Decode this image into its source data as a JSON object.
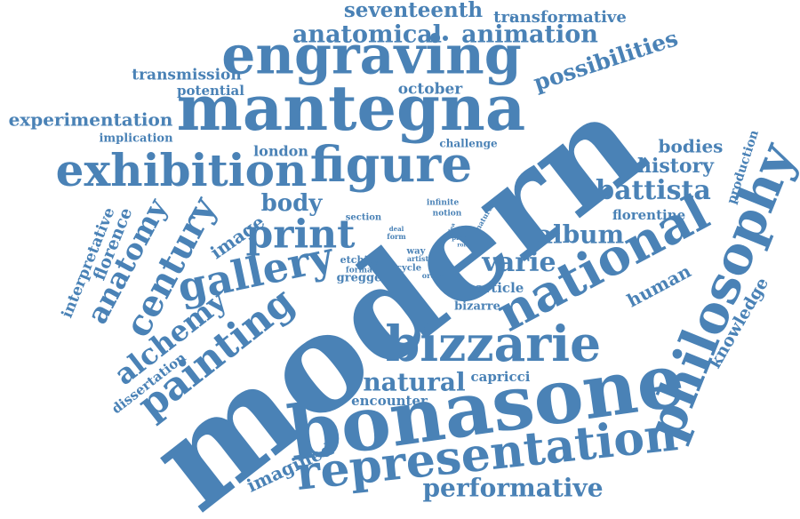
{
  "accent_color": "#4a82b6",
  "words": {
    "modern": "modern",
    "bonasone": "bonasone",
    "mantegna": "mantegna",
    "engraving": "engraving",
    "representation": "representation",
    "philosophy": "philosophy",
    "national": "national",
    "bizzarie": "bizzarie",
    "figure": "figure",
    "exhibition": "exhibition",
    "gallery": "gallery",
    "print": "print",
    "painting": "painting",
    "century": "century",
    "anatomy": "anatomy",
    "alchemy": "alchemy",
    "anatomical": "anatomical",
    "animation": "animation",
    "seventeenth": "seventeenth",
    "transformative": "transformative",
    "possibilities": "possibilities",
    "transmission": "transmission",
    "potential": "potential",
    "october": "october",
    "experimentation": "experimentation",
    "implication": "implication",
    "london": "london",
    "challenge": "challenge",
    "battista": "battista",
    "history": "history",
    "bodies": "bodies",
    "florentine": "florentine",
    "album": "album",
    "body": "body",
    "image": "image",
    "varie": "varie",
    "human": "human",
    "natural": "natural",
    "performative": "performative",
    "imagined": "imagined",
    "encounter": "encounter",
    "capricci": "capricci",
    "dissertation": "dissertation",
    "interpretative": "interpretative",
    "florence": "florence",
    "knowledge": "knowledge",
    "production": "production",
    "article": "article",
    "bizarre": "bizarre",
    "etching": "etching",
    "format": "format",
    "gregge": "gregge",
    "section": "section",
    "infinite": "infinite",
    "notion": "notion",
    "deal": "deal",
    "form": "form",
    "way": "way",
    "artist": "artist",
    "cycle": "cycle",
    "order": "order",
    "nature": "nature",
    "idea": "idea",
    "proc": "proc",
    "role": "role"
  }
}
